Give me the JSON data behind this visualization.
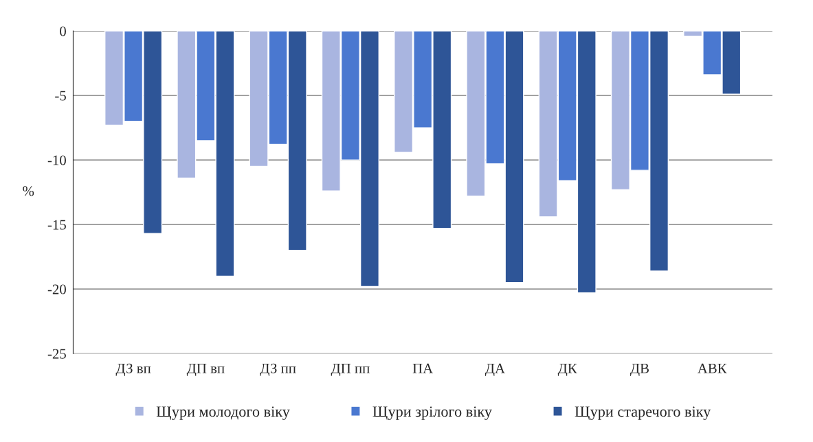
{
  "chart_data": {
    "type": "bar",
    "ylabel": "%",
    "categories": [
      "ДЗ вп",
      "ДП вп",
      "ДЗ пп",
      "ДП пп",
      "ПА",
      "ДА",
      "ДК",
      "ДВ",
      "АВК"
    ],
    "series": [
      {
        "name": "Щури молодого віку",
        "color": "#a9b5e0",
        "values": [
          -7.3,
          -11.4,
          -10.5,
          -12.4,
          -9.4,
          -12.8,
          -14.4,
          -12.3,
          -0.4
        ]
      },
      {
        "name": "Щури зрілого віку",
        "color": "#4a78d0",
        "values": [
          -7.0,
          -8.5,
          -8.8,
          -10.0,
          -7.5,
          -10.3,
          -11.6,
          -10.8,
          -3.4
        ]
      },
      {
        "name": "Щури старечого віку",
        "color": "#2e5597",
        "values": [
          -15.7,
          -19.0,
          -17.0,
          -19.8,
          -15.3,
          -19.5,
          -20.3,
          -18.6,
          -4.9
        ]
      }
    ],
    "ylim": [
      -25,
      0
    ],
    "yticks": [
      0,
      -5,
      -10,
      -15,
      -20,
      -25
    ],
    "grid": "y",
    "legend": "bottom"
  }
}
